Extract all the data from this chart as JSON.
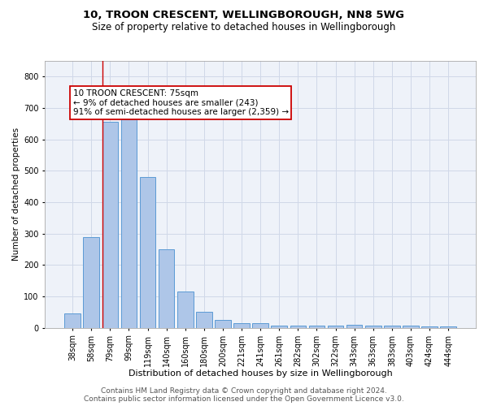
{
  "title1": "10, TROON CRESCENT, WELLINGBOROUGH, NN8 5WG",
  "title2": "Size of property relative to detached houses in Wellingborough",
  "xlabel": "Distribution of detached houses by size in Wellingborough",
  "ylabel": "Number of detached properties",
  "categories": [
    "38sqm",
    "58sqm",
    "79sqm",
    "99sqm",
    "119sqm",
    "140sqm",
    "160sqm",
    "180sqm",
    "200sqm",
    "221sqm",
    "241sqm",
    "261sqm",
    "282sqm",
    "302sqm",
    "322sqm",
    "343sqm",
    "363sqm",
    "383sqm",
    "403sqm",
    "424sqm",
    "444sqm"
  ],
  "values": [
    45,
    290,
    655,
    665,
    480,
    250,
    115,
    50,
    25,
    15,
    14,
    8,
    8,
    8,
    6,
    9,
    6,
    6,
    6,
    5,
    5
  ],
  "bar_color": "#aec6e8",
  "bar_edge_color": "#5b9bd5",
  "vline_x_index": 2,
  "vline_color": "#cc0000",
  "annotation_line1": "10 TROON CRESCENT: 75sqm",
  "annotation_line2": "← 9% of detached houses are smaller (243)",
  "annotation_line3": "91% of semi-detached houses are larger (2,359) →",
  "annotation_box_color": "#ffffff",
  "annotation_box_edge_color": "#cc0000",
  "ylim": [
    0,
    850
  ],
  "yticks": [
    0,
    100,
    200,
    300,
    400,
    500,
    600,
    700,
    800
  ],
  "grid_color": "#d0d8e8",
  "background_color": "#eef2f9",
  "footer1": "Contains HM Land Registry data © Crown copyright and database right 2024.",
  "footer2": "Contains public sector information licensed under the Open Government Licence v3.0.",
  "title1_fontsize": 9.5,
  "title2_fontsize": 8.5,
  "xlabel_fontsize": 8,
  "ylabel_fontsize": 7.5,
  "tick_fontsize": 7,
  "annot_fontsize": 7.5,
  "footer_fontsize": 6.5
}
